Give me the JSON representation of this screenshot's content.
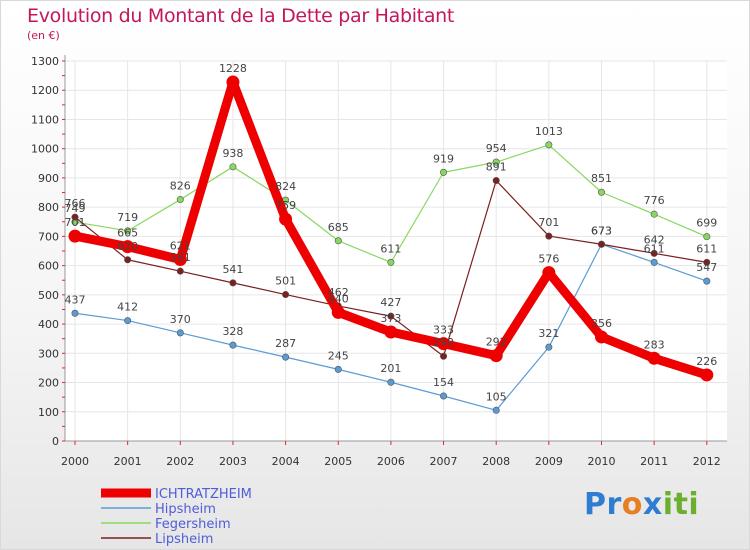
{
  "title": "Evolution du Montant de la Dette par Habitant",
  "subtitle": "(en €)",
  "logo": {
    "letters": [
      "P",
      "r",
      "o",
      "x",
      "i",
      "t",
      "i"
    ],
    "colors": [
      "#2e7dd1",
      "#2e7dd1",
      "#e67e22",
      "#2e7dd1",
      "#6ab02e",
      "#6ab02e",
      "#6ab02e"
    ]
  },
  "chart_data": {
    "type": "line",
    "categories": [
      "2000",
      "2001",
      "2002",
      "2003",
      "2004",
      "2005",
      "2006",
      "2007",
      "2008",
      "2009",
      "2010",
      "2011",
      "2012"
    ],
    "y_ticks": [
      "0",
      "100",
      "200",
      "300",
      "400",
      "500",
      "600",
      "700",
      "800",
      "900",
      "1000",
      "1100",
      "1200",
      "1300"
    ],
    "ylim": [
      0,
      1300
    ],
    "grid": true,
    "legend_position": "bottom-left",
    "series": [
      {
        "name": "ICHTRATZHEIM",
        "color": "#ee0000",
        "emphasis": true,
        "values": [
          701,
          665,
          621,
          1228,
          759,
          440,
          373,
          333,
          292,
          576,
          356,
          283,
          226
        ],
        "labels": [
          "701",
          "665",
          "621",
          "1228",
          "759",
          "440",
          "373",
          "333",
          "292",
          "576",
          "356",
          "283",
          "226"
        ]
      },
      {
        "name": "Hipsheim",
        "color": "#5b9bd5",
        "values": [
          437,
          412,
          370,
          328,
          287,
          245,
          201,
          154,
          105,
          321,
          673,
          611,
          547
        ],
        "labels": [
          "437",
          "412",
          "370",
          "328",
          "287",
          "245",
          "201",
          "154",
          "105",
          "321",
          "673",
          "611",
          "547"
        ]
      },
      {
        "name": "Fegersheim",
        "color": "#88d860",
        "values": [
          749,
          719,
          826,
          938,
          824,
          685,
          611,
          919,
          954,
          1013,
          851,
          776,
          699
        ],
        "labels": [
          "749",
          "719",
          "826",
          "938",
          "824",
          "685",
          "611",
          "919",
          "954",
          "1013",
          "851",
          "776",
          "699"
        ]
      },
      {
        "name": "Lipsheim",
        "color": "#7a2020",
        "values": [
          766,
          620,
          581,
          541,
          501,
          462,
          427,
          290,
          891,
          701,
          673,
          642,
          611
        ],
        "labels": [
          "766",
          "620",
          "581",
          "541",
          "501",
          "462",
          "427",
          "290",
          "891",
          "701",
          "673",
          "642",
          "611"
        ]
      }
    ]
  }
}
